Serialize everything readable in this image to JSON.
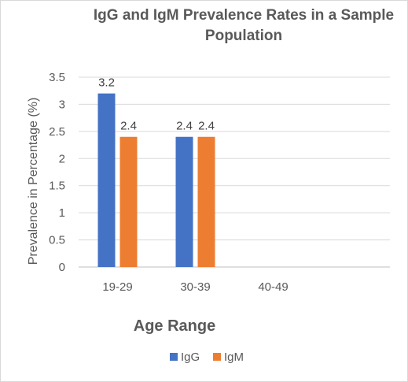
{
  "chart_data": {
    "type": "bar",
    "title_line1": "IgG and IgM Prevalence Rates in a Sample",
    "title_line2": "Population",
    "xlabel": "Age Range",
    "ylabel": "Prevalence in Percentage (%)",
    "categories": [
      "19-29",
      "30-39",
      "40-49"
    ],
    "series": [
      {
        "name": "IgG",
        "color": "#4472C4",
        "values": [
          3.2,
          2.4,
          null
        ],
        "labels": [
          "3.2",
          "2.4",
          ""
        ]
      },
      {
        "name": "IgM",
        "color": "#ED7D31",
        "values": [
          2.4,
          2.4,
          null
        ],
        "labels": [
          "2.4",
          "2.4",
          ""
        ]
      }
    ],
    "ylim": [
      0,
      3.5
    ],
    "yticks": [
      "0",
      "0.5",
      "1",
      "1.5",
      "2",
      "2.5",
      "3",
      "3.5"
    ],
    "grid": true,
    "legend_position": "bottom"
  }
}
